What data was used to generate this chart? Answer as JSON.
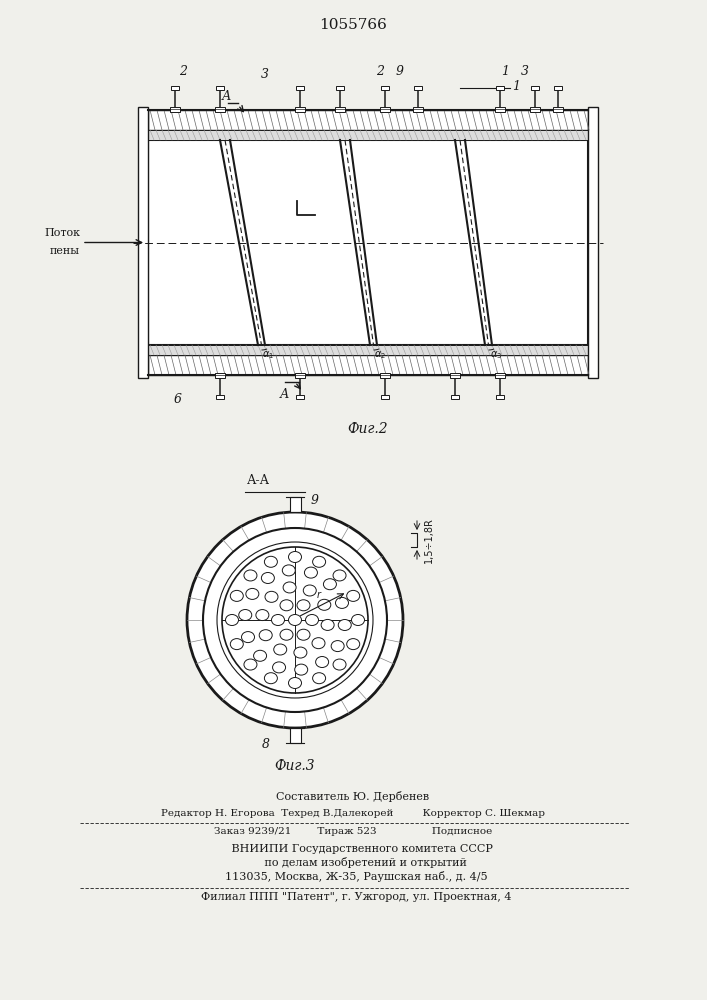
{
  "patent_number": "1055766",
  "bg_color": "#f0f0eb",
  "line_color": "#1a1a1a",
  "fig2_label": "Фиг.2",
  "fig3_label": "Фиг.3",
  "footer_lines": [
    "Составитель Ю. Дербенев",
    "Редактор Н. Егорова  Техред В.Далекорей         Корректор С. Шекмар",
    "Заказ 9239/21        Тираж 523                 Подписное",
    "     ВНИИПИ Государственного комитета СССР",
    "       по делам изобретений и открытий",
    "  113035, Москва, Ж-35, Раушская наб., д. 4/5",
    "  Филиал ППП \"Патент\", г. Ужгород, ул. Проектная, 4"
  ]
}
